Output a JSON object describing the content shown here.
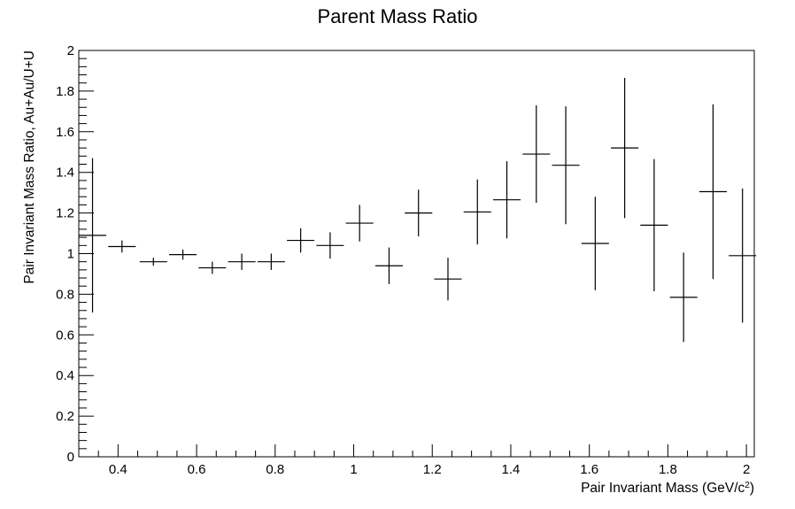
{
  "chart_data": {
    "type": "scatter",
    "title": "Parent Mass Ratio",
    "xlabel": "Pair Invariant Mass (GeV/c",
    "xlabel_sup": "2",
    "xlabel_close": ")",
    "ylabel": "Pair Invariant Mass Ratio, Au+Au/U+U",
    "xlim": [
      0.3,
      2.02
    ],
    "ylim": [
      0,
      2
    ],
    "x_ticks": [
      0.4,
      0.6,
      0.8,
      1,
      1.2,
      1.4,
      1.6,
      1.8,
      2
    ],
    "x_tick_labels": [
      "0.4",
      "0.6",
      "0.8",
      "1",
      "1.2",
      "1.4",
      "1.6",
      "1.8",
      "2"
    ],
    "y_ticks": [
      0,
      0.2,
      0.4,
      0.6,
      0.8,
      1,
      1.2,
      1.4,
      1.6,
      1.8,
      2
    ],
    "y_tick_labels": [
      "0",
      "0.2",
      "0.4",
      "0.6",
      "0.8",
      "1",
      "1.2",
      "1.4",
      "1.6",
      "1.8",
      "2"
    ],
    "points": [
      {
        "x": 0.335,
        "xerr": 0.035,
        "y": 1.09,
        "yerr": 0.38
      },
      {
        "x": 0.41,
        "xerr": 0.035,
        "y": 1.035,
        "yerr": 0.03
      },
      {
        "x": 0.49,
        "xerr": 0.035,
        "y": 0.96,
        "yerr": 0.02
      },
      {
        "x": 0.565,
        "xerr": 0.035,
        "y": 0.995,
        "yerr": 0.025
      },
      {
        "x": 0.64,
        "xerr": 0.035,
        "y": 0.93,
        "yerr": 0.03
      },
      {
        "x": 0.715,
        "xerr": 0.035,
        "y": 0.96,
        "yerr": 0.04
      },
      {
        "x": 0.79,
        "xerr": 0.035,
        "y": 0.96,
        "yerr": 0.04
      },
      {
        "x": 0.865,
        "xerr": 0.035,
        "y": 1.065,
        "yerr": 0.06
      },
      {
        "x": 0.94,
        "xerr": 0.035,
        "y": 1.04,
        "yerr": 0.065
      },
      {
        "x": 1.015,
        "xerr": 0.035,
        "y": 1.15,
        "yerr": 0.09
      },
      {
        "x": 1.09,
        "xerr": 0.035,
        "y": 0.94,
        "yerr": 0.09
      },
      {
        "x": 1.165,
        "xerr": 0.035,
        "y": 1.2,
        "yerr": 0.115
      },
      {
        "x": 1.24,
        "xerr": 0.035,
        "y": 0.875,
        "yerr": 0.105
      },
      {
        "x": 1.315,
        "xerr": 0.035,
        "y": 1.205,
        "yerr": 0.16
      },
      {
        "x": 1.39,
        "xerr": 0.035,
        "y": 1.265,
        "yerr": 0.19
      },
      {
        "x": 1.465,
        "xerr": 0.035,
        "y": 1.49,
        "yerr": 0.24
      },
      {
        "x": 1.54,
        "xerr": 0.035,
        "y": 1.435,
        "yerr": 0.29
      },
      {
        "x": 1.615,
        "xerr": 0.035,
        "y": 1.05,
        "yerr": 0.23
      },
      {
        "x": 1.69,
        "xerr": 0.035,
        "y": 1.52,
        "yerr": 0.345
      },
      {
        "x": 1.765,
        "xerr": 0.035,
        "y": 1.14,
        "yerr": 0.325
      },
      {
        "x": 1.84,
        "xerr": 0.035,
        "y": 0.785,
        "yerr": 0.22
      },
      {
        "x": 1.915,
        "xerr": 0.035,
        "y": 1.305,
        "yerr": 0.43
      },
      {
        "x": 1.99,
        "xerr": 0.035,
        "y": 0.99,
        "yerr": 0.33
      }
    ]
  }
}
